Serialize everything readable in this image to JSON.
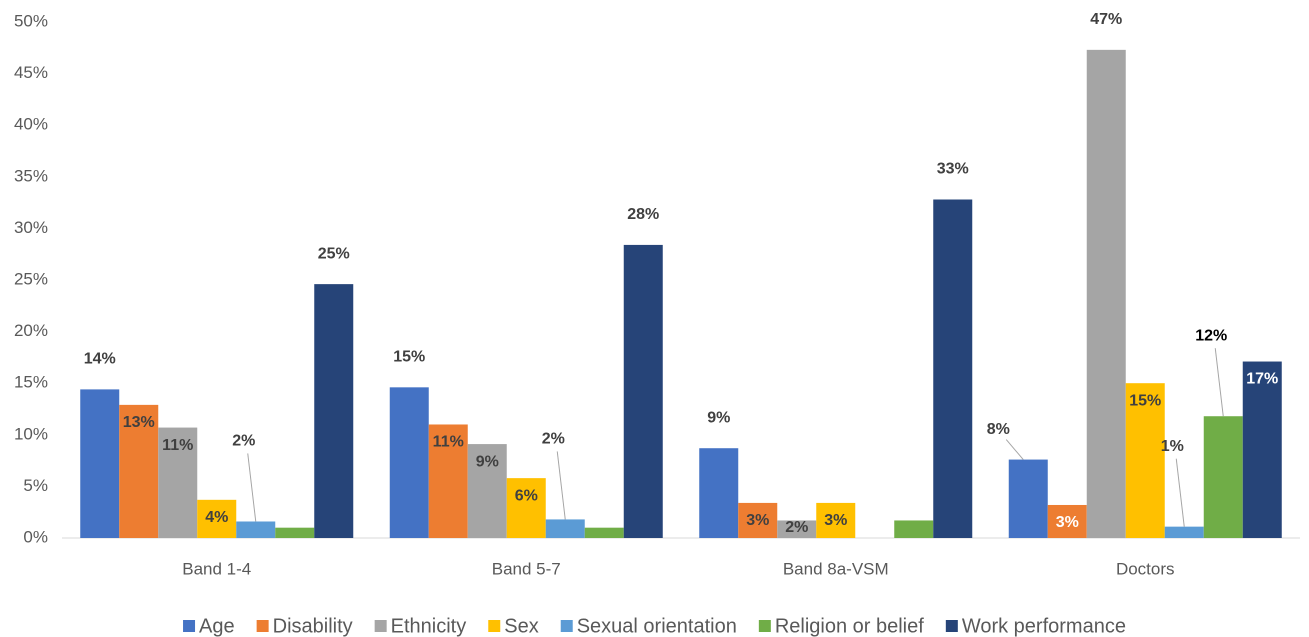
{
  "chart_data": {
    "type": "bar",
    "categories": [
      "Band 1-4",
      "Band 5-7",
      "Band 8a-VSM",
      "Doctors"
    ],
    "series": [
      {
        "name": "Age",
        "color": "#4472c4",
        "values": [
          14.4,
          14.6,
          8.7,
          7.6
        ],
        "value_labels": [
          "14%",
          "15%",
          "9%",
          "8%"
        ]
      },
      {
        "name": "Disability",
        "color": "#ed7d31",
        "values": [
          12.9,
          11.0,
          3.4,
          3.2
        ],
        "value_labels": [
          "13%",
          "11%",
          "3%",
          "3%"
        ]
      },
      {
        "name": "Ethnicity",
        "color": "#a5a5a5",
        "values": [
          10.7,
          9.1,
          1.7,
          47.3
        ],
        "value_labels": [
          "11%",
          "9%",
          "2%",
          "47%"
        ]
      },
      {
        "name": "Sex",
        "color": "#ffc000",
        "values": [
          3.7,
          5.8,
          3.4,
          15.0
        ],
        "value_labels": [
          "4%",
          "6%",
          "3%",
          "15%"
        ]
      },
      {
        "name": "Sexual orientation",
        "color": "#5b9bd5",
        "values": [
          1.6,
          1.8,
          0,
          1.1
        ],
        "value_labels": [
          "2%",
          "2%",
          null,
          "1%"
        ]
      },
      {
        "name": "Religion or belief",
        "color": "#70ad47",
        "values": [
          1.0,
          1.0,
          1.7,
          11.8
        ],
        "value_labels": [
          null,
          null,
          null,
          "12%"
        ]
      },
      {
        "name": "Work performance",
        "color": "#264478",
        "values": [
          24.6,
          28.4,
          32.8,
          17.1
        ],
        "value_labels": [
          "25%",
          "28%",
          "33%",
          "17%"
        ]
      }
    ],
    "ylim": [
      0,
      50
    ],
    "yticks": [
      {
        "value": 0,
        "label": "0%"
      },
      {
        "value": 5,
        "label": "5%"
      },
      {
        "value": 10,
        "label": "10%"
      },
      {
        "value": 15,
        "label": "15%"
      },
      {
        "value": 20,
        "label": "20%"
      },
      {
        "value": 25,
        "label": "25%"
      },
      {
        "value": 30,
        "label": "30%"
      },
      {
        "value": 35,
        "label": "35%"
      },
      {
        "value": 40,
        "label": "40%"
      },
      {
        "value": 45,
        "label": "45%"
      },
      {
        "value": 50,
        "label": "50%"
      }
    ],
    "grid": false,
    "legend": "bottom"
  }
}
